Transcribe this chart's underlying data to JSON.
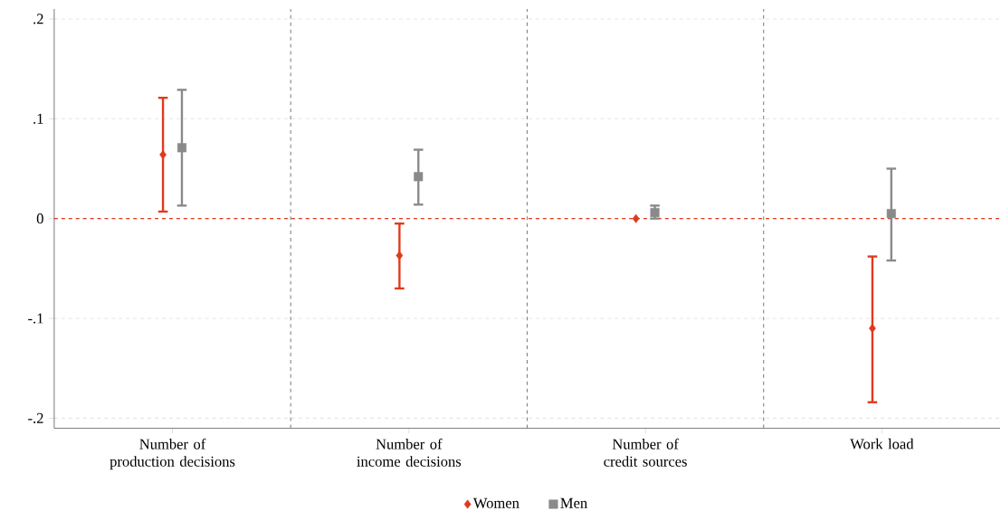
{
  "chart_data": {
    "type": "scatter",
    "categories": [
      "Number of production decisions",
      "Number of income decisions",
      "Number of credit sources",
      "Work load"
    ],
    "series": [
      {
        "name": "Women",
        "color": "#e03a1e",
        "marker": "diamond",
        "values": [
          0.064,
          -0.037,
          0.0,
          -0.11
        ],
        "errors": [
          [
            0.007,
            0.121
          ],
          [
            -0.07,
            -0.005
          ],
          null,
          [
            -0.184,
            -0.038
          ]
        ]
      },
      {
        "name": "Men",
        "color": "#8a8a8a",
        "marker": "square",
        "values": [
          0.071,
          0.042,
          0.006,
          0.005
        ],
        "errors": [
          [
            0.013,
            0.129
          ],
          [
            0.014,
            0.069
          ],
          [
            0.0,
            0.013
          ],
          [
            -0.042,
            0.05
          ]
        ]
      }
    ],
    "ylim": [
      -0.21,
      0.21
    ],
    "yticks": [
      {
        "value": -0.2,
        "label": "-.2"
      },
      {
        "value": -0.1,
        "label": "-.1"
      },
      0,
      {
        "value": 0.1,
        "label": ".1"
      },
      {
        "value": 0.2,
        "label": ".2"
      }
    ],
    "grid": "y",
    "legend": "bottom",
    "ref_lines": [
      {
        "axis": "y",
        "value": 0,
        "color": "#e03a1e",
        "line_style": "dashed"
      }
    ]
  }
}
